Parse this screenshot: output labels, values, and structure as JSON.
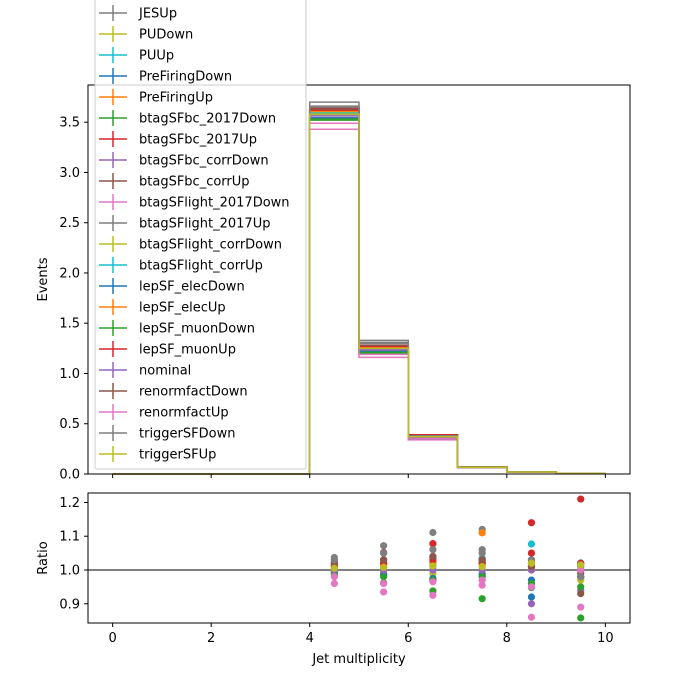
{
  "chart_data": [
    {
      "type": "step",
      "xlabel": "",
      "ylabel": "Events",
      "xlim": [
        -0.5,
        10.5
      ],
      "ylim": [
        0,
        3.87
      ],
      "yticks": [
        "0.0",
        "0.5",
        "1.0",
        "1.5",
        "2.0",
        "2.5",
        "3.0",
        "3.5"
      ],
      "ytick_values": [
        0,
        0.5,
        1.0,
        1.5,
        2.0,
        2.5,
        3.0,
        3.5
      ],
      "bin_edges": [
        0,
        1,
        2,
        3,
        4,
        5,
        6,
        7,
        8,
        9,
        10
      ],
      "legend_position": "upper-left (extends above axes)",
      "grid": false,
      "series": [
        {
          "name": "JESUp",
          "color": "#7f7f7f",
          "values": [
            0,
            0,
            0,
            0,
            3.7,
            1.33,
            0.39,
            0.072,
            0.022,
            0.006
          ]
        },
        {
          "name": "PUDown",
          "color": "#bcbd22",
          "values": [
            0,
            0,
            0,
            0,
            3.6,
            1.27,
            0.37,
            0.068,
            0.02,
            0.006
          ]
        },
        {
          "name": "PUUp",
          "color": "#17becf",
          "values": [
            0,
            0,
            0,
            0,
            3.55,
            1.23,
            0.36,
            0.067,
            0.02,
            0.006
          ]
        },
        {
          "name": "PreFiringDown",
          "color": "#1f77b4",
          "values": [
            0,
            0,
            0,
            0,
            3.58,
            1.24,
            0.36,
            0.066,
            0.019,
            0.006
          ]
        },
        {
          "name": "PreFiringUp",
          "color": "#ff7f0e",
          "values": [
            0,
            0,
            0,
            0,
            3.58,
            1.25,
            0.37,
            0.067,
            0.02,
            0.006
          ]
        },
        {
          "name": "btagSFbc_2017Down",
          "color": "#2ca02c",
          "values": [
            0,
            0,
            0,
            0,
            3.52,
            1.2,
            0.35,
            0.066,
            0.019,
            0.005
          ]
        },
        {
          "name": "btagSFbc_2017Up",
          "color": "#d62728",
          "values": [
            0,
            0,
            0,
            0,
            3.64,
            1.3,
            0.39,
            0.069,
            0.021,
            0.007
          ]
        },
        {
          "name": "btagSFbc_corrDown",
          "color": "#9467bd",
          "values": [
            0,
            0,
            0,
            0,
            3.55,
            1.23,
            0.36,
            0.066,
            0.018,
            0.005
          ]
        },
        {
          "name": "btagSFbc_corrUp",
          "color": "#8c564b",
          "values": [
            0,
            0,
            0,
            0,
            3.62,
            1.28,
            0.38,
            0.068,
            0.02,
            0.006
          ]
        },
        {
          "name": "btagSFlight_2017Down",
          "color": "#e377c2",
          "values": [
            0,
            0,
            0,
            0,
            3.43,
            1.16,
            0.34,
            0.063,
            0.017,
            0.005
          ]
        },
        {
          "name": "btagSFlight_2017Up",
          "color": "#7f7f7f",
          "values": [
            0,
            0,
            0,
            0,
            3.66,
            1.31,
            0.38,
            0.07,
            0.021,
            0.006
          ]
        },
        {
          "name": "btagSFlight_corrDown",
          "color": "#bcbd22",
          "values": [
            0,
            0,
            0,
            0,
            3.57,
            1.24,
            0.36,
            0.066,
            0.019,
            0.006
          ]
        },
        {
          "name": "btagSFlight_corrUp",
          "color": "#17becf",
          "values": [
            0,
            0,
            0,
            0,
            3.59,
            1.25,
            0.37,
            0.068,
            0.021,
            0.006
          ]
        },
        {
          "name": "lepSF_elecDown",
          "color": "#1f77b4",
          "values": [
            0,
            0,
            0,
            0,
            3.54,
            1.22,
            0.35,
            0.065,
            0.019,
            0.006
          ]
        },
        {
          "name": "lepSF_elecUp",
          "color": "#ff7f0e",
          "values": [
            0,
            0,
            0,
            0,
            3.61,
            1.26,
            0.37,
            0.068,
            0.02,
            0.006
          ]
        },
        {
          "name": "lepSF_muonDown",
          "color": "#2ca02c",
          "values": [
            0,
            0,
            0,
            0,
            3.53,
            1.21,
            0.35,
            0.065,
            0.019,
            0.005
          ]
        },
        {
          "name": "lepSF_muonUp",
          "color": "#d62728",
          "values": [
            0,
            0,
            0,
            0,
            3.62,
            1.27,
            0.37,
            0.068,
            0.021,
            0.006
          ]
        },
        {
          "name": "nominal",
          "color": "#9467bd",
          "values": [
            0,
            0,
            0,
            0,
            3.57,
            1.24,
            0.36,
            0.066,
            0.02,
            0.006
          ]
        },
        {
          "name": "renormfactDown",
          "color": "#8c564b",
          "values": [
            0,
            0,
            0,
            0,
            3.63,
            1.28,
            0.38,
            0.069,
            0.02,
            0.006
          ]
        },
        {
          "name": "renormfactUp",
          "color": "#e377c2",
          "values": [
            0,
            0,
            0,
            0,
            3.49,
            1.19,
            0.35,
            0.065,
            0.019,
            0.006
          ]
        },
        {
          "name": "triggerSFDown",
          "color": "#7f7f7f",
          "values": [
            0,
            0,
            0,
            0,
            3.65,
            1.3,
            0.38,
            0.069,
            0.021,
            0.006
          ]
        },
        {
          "name": "triggerSFUp",
          "color": "#bcbd22",
          "values": [
            0,
            0,
            0,
            0,
            3.58,
            1.25,
            0.37,
            0.067,
            0.02,
            0.006
          ]
        }
      ]
    },
    {
      "type": "scatter",
      "xlabel": "Jet multiplicity",
      "ylabel": "Ratio",
      "xlim": [
        -0.5,
        10.5
      ],
      "ylim": [
        0.843,
        1.228
      ],
      "xticks": [
        "0",
        "2",
        "4",
        "6",
        "8",
        "10"
      ],
      "xtick_values": [
        0,
        2,
        4,
        6,
        8,
        10
      ],
      "yticks": [
        "0.9",
        "1.0",
        "1.1",
        "1.2"
      ],
      "ytick_values": [
        0.9,
        1.0,
        1.1,
        1.2
      ],
      "reference_line": 1.0,
      "x": [
        4.5,
        5.5,
        6.5,
        7.5,
        8.5,
        9.5
      ],
      "series": [
        {
          "name": "JESUp",
          "color": "#7f7f7f",
          "values": [
            1.037,
            1.072,
            1.111,
            1.12,
            1.02,
            1.01
          ]
        },
        {
          "name": "PUDown",
          "color": "#bcbd22",
          "values": [
            1.01,
            1.02,
            1.02,
            1.02,
            1.0,
            1.0
          ]
        },
        {
          "name": "PUUp",
          "color": "#17becf",
          "values": [
            0.995,
            0.99,
            1.0,
            1.035,
            1.077,
            1.021
          ]
        },
        {
          "name": "PreFiringDown",
          "color": "#1f77b4",
          "values": [
            1.0,
            1.0,
            0.97,
            1.0,
            0.92,
            0.98
          ]
        },
        {
          "name": "PreFiringUp",
          "color": "#ff7f0e",
          "values": [
            1.005,
            1.01,
            1.02,
            1.11,
            1.0,
            1.0
          ]
        },
        {
          "name": "btagSFbc_2017Down",
          "color": "#2ca02c",
          "values": [
            0.985,
            0.962,
            0.938,
            0.915,
            0.948,
            0.858
          ]
        },
        {
          "name": "btagSFbc_2017Up",
          "color": "#d62728",
          "values": [
            1.02,
            1.052,
            1.078,
            1.03,
            1.14,
            1.21
          ]
        },
        {
          "name": "btagSFbc_corrDown",
          "color": "#9467bd",
          "values": [
            0.995,
            0.99,
            0.99,
            0.99,
            0.9,
            0.94
          ]
        },
        {
          "name": "btagSFbc_corrUp",
          "color": "#8c564b",
          "values": [
            1.015,
            1.03,
            1.037,
            1.025,
            1.01,
            0.93
          ]
        },
        {
          "name": "btagSFlight_2017Down",
          "color": "#e377c2",
          "values": [
            0.96,
            0.935,
            0.925,
            0.955,
            0.86,
            0.89
          ]
        },
        {
          "name": "btagSFlight_2017Up",
          "color": "#7f7f7f",
          "values": [
            1.025,
            1.05,
            1.04,
            1.06,
            1.02,
            1.0
          ]
        },
        {
          "name": "btagSFlight_corrDown",
          "color": "#bcbd22",
          "values": [
            0.998,
            0.998,
            0.99,
            0.998,
            0.96,
            0.97
          ]
        },
        {
          "name": "btagSFlight_corrUp",
          "color": "#17becf",
          "values": [
            1.003,
            1.006,
            1.012,
            1.02,
            1.03,
            1.02
          ]
        },
        {
          "name": "lepSF_elecDown",
          "color": "#1f77b4",
          "values": [
            0.99,
            0.985,
            0.975,
            0.985,
            0.97,
            0.98
          ]
        },
        {
          "name": "lepSF_elecUp",
          "color": "#ff7f0e",
          "values": [
            1.01,
            1.015,
            1.025,
            1.015,
            1.01,
            1.0
          ]
        },
        {
          "name": "lepSF_muonDown",
          "color": "#2ca02c",
          "values": [
            0.99,
            0.98,
            0.97,
            0.98,
            0.96,
            0.95
          ]
        },
        {
          "name": "lepSF_muonUp",
          "color": "#d62728",
          "values": [
            1.012,
            1.02,
            1.03,
            1.02,
            1.05,
            1.02
          ]
        },
        {
          "name": "nominal",
          "color": "#9467bd",
          "values": [
            1.0,
            1.0,
            1.0,
            1.0,
            1.0,
            1.0
          ]
        },
        {
          "name": "renormfactDown",
          "color": "#8c564b",
          "values": [
            1.02,
            1.03,
            1.04,
            1.03,
            1.01,
            0.99
          ]
        },
        {
          "name": "renormfactUp",
          "color": "#e377c2",
          "values": [
            0.98,
            0.96,
            0.965,
            0.97,
            0.95,
            1.0
          ]
        },
        {
          "name": "triggerSFDown",
          "color": "#7f7f7f",
          "values": [
            1.03,
            1.05,
            1.06,
            1.05,
            1.03,
            0.98
          ]
        },
        {
          "name": "triggerSFUp",
          "color": "#bcbd22",
          "values": [
            1.005,
            1.008,
            1.012,
            1.01,
            1.02,
            1.015
          ]
        }
      ]
    }
  ]
}
